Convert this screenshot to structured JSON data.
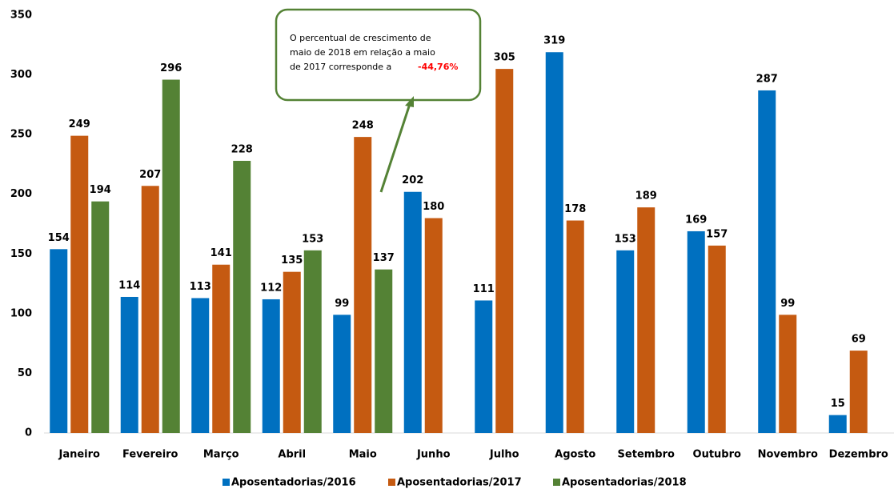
{
  "chart_data": {
    "type": "bar",
    "categories": [
      "Janeiro",
      "Fevereiro",
      "Março",
      "Abril",
      "Maio",
      "Junho",
      "Julho",
      "Agosto",
      "Setembro",
      "Outubro",
      "Novembro",
      "Dezembro"
    ],
    "series": [
      {
        "name": "Aposentadorias/2016",
        "color": "#0070c0",
        "values": [
          154,
          114,
          113,
          112,
          99,
          202,
          111,
          319,
          153,
          169,
          287,
          15
        ]
      },
      {
        "name": "Aposentadorias/2017",
        "color": "#c55a11",
        "values": [
          249,
          207,
          141,
          135,
          248,
          180,
          305,
          178,
          189,
          157,
          99,
          69
        ]
      },
      {
        "name": "Aposentadorias/2018",
        "color": "#548235",
        "values": [
          194,
          296,
          228,
          153,
          137,
          null,
          null,
          null,
          null,
          null,
          null,
          null
        ]
      }
    ],
    "ylim": [
      0,
      350
    ],
    "yticks": [
      0,
      50,
      100,
      150,
      200,
      250,
      300,
      350
    ],
    "grid": false,
    "legend": "bottom",
    "annotation": {
      "lines": [
        "O percentual  de crescimento  de",
        "maio de 2018 em relação a maio",
        "de 2017 corresponde  a"
      ],
      "highlight": "-44,76%"
    }
  }
}
